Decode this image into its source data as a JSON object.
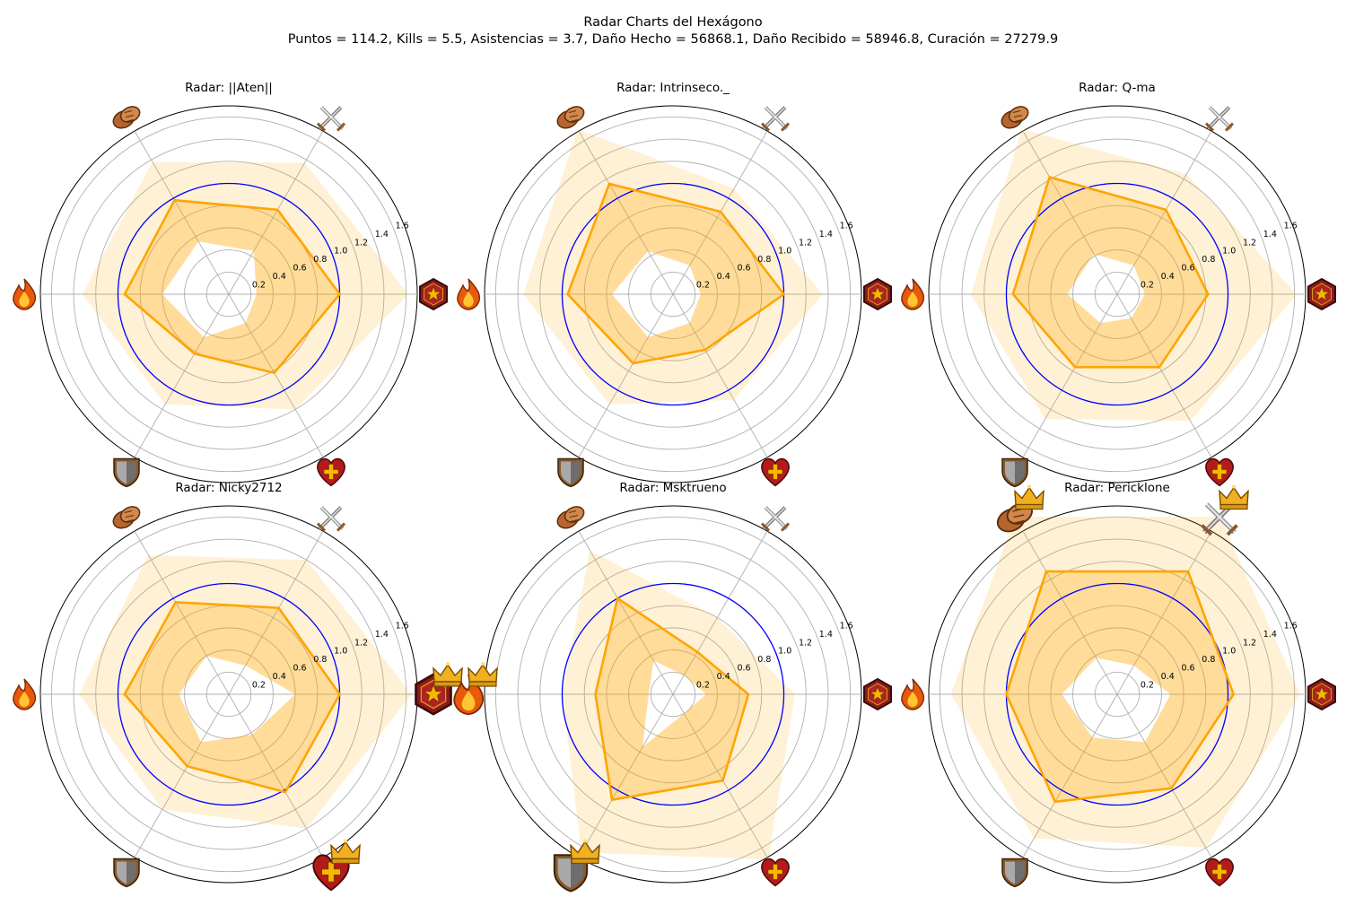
{
  "figure": {
    "title_line1": "Radar Charts del Hexágono",
    "title_line2": "Puntos = 114.2, Kills = 5.5, Asistencias = 3.7, Daño Hecho = 56868.1, Daño Recibido = 58946.8, Curación = 27279.9"
  },
  "colors": {
    "series_line": "#ffa500",
    "band_fill": "#ffa500",
    "reference_circle": "#0000ff",
    "grid": "#b0b0b0",
    "frame": "#000000"
  },
  "chart_data": {
    "type": "radar",
    "axes": [
      {
        "metric": "Puntos",
        "icon": "hexagon-star-badge-icon"
      },
      {
        "metric": "Kills",
        "icon": "crossed-swords-icon"
      },
      {
        "metric": "Asistencias",
        "icon": "handshake-icon"
      },
      {
        "metric": "Daño Hecho",
        "icon": "fire-icon"
      },
      {
        "metric": "Daño Recibido",
        "icon": "shield-icon"
      },
      {
        "metric": "Curación",
        "icon": "heart-cross-icon"
      }
    ],
    "radial_ticks": [
      "0.2",
      "0.4",
      "0.6",
      "0.8",
      "1.0",
      "1.2",
      "1.4",
      "1.6"
    ],
    "rlim": [
      0,
      1.7
    ],
    "reference_value": 1.0,
    "grid": true,
    "charts": [
      {
        "title": "Radar: ||Aten||",
        "values": [
          1.0,
          0.88,
          0.98,
          0.94,
          0.62,
          0.82
        ],
        "band_low": [
          0.25,
          0.45,
          0.55,
          0.6,
          0.45,
          0.3
        ],
        "band_high": [
          1.62,
          1.37,
          1.38,
          1.32,
          1.15,
          1.2
        ],
        "crowns": []
      },
      {
        "title": "Radar: Intrinseco._",
        "values": [
          1.0,
          0.86,
          1.15,
          0.95,
          0.72,
          0.58
        ],
        "band_low": [
          0.25,
          0.3,
          0.45,
          0.55,
          0.45,
          0.3
        ],
        "band_high": [
          1.35,
          1.1,
          1.72,
          1.35,
          1.15,
          1.1
        ],
        "crowns": []
      },
      {
        "title": "Radar: Q-ma",
        "values": [
          0.82,
          0.88,
          1.22,
          0.94,
          0.76,
          0.76
        ],
        "band_low": [
          0.25,
          0.3,
          0.42,
          0.45,
          0.3,
          0.25
        ],
        "band_high": [
          1.62,
          1.25,
          1.72,
          1.32,
          1.3,
          1.32
        ],
        "crowns": []
      },
      {
        "title": "Radar: Nicky2712",
        "values": [
          1.0,
          0.9,
          0.96,
          0.94,
          0.75,
          1.02
        ],
        "band_low": [
          0.6,
          0.3,
          0.4,
          0.45,
          0.5,
          0.42
        ],
        "band_high": [
          1.65,
          1.4,
          1.45,
          1.35,
          1.2,
          1.4
        ],
        "crowns": [
          "Puntos",
          "Curación"
        ]
      },
      {
        "title": "Radar: Msktrueno",
        "values": [
          0.68,
          0.44,
          1.0,
          0.7,
          1.1,
          0.9
        ],
        "band_low": [
          0.3,
          0.2,
          0.35,
          0.22,
          0.55,
          0.2
        ],
        "band_high": [
          1.1,
          0.8,
          1.5,
          1.0,
          1.65,
          1.72
        ],
        "crowns": [
          "Daño Hecho",
          "Daño Recibido"
        ]
      },
      {
        "title": "Radar: Pericklone",
        "values": [
          1.05,
          1.28,
          1.28,
          1.0,
          1.12,
          0.98
        ],
        "band_low": [
          0.48,
          0.3,
          0.38,
          0.5,
          0.45,
          0.5
        ],
        "band_high": [
          1.65,
          1.85,
          1.85,
          1.5,
          1.5,
          1.6
        ],
        "crowns": [
          "Kills",
          "Asistencias"
        ]
      }
    ]
  }
}
